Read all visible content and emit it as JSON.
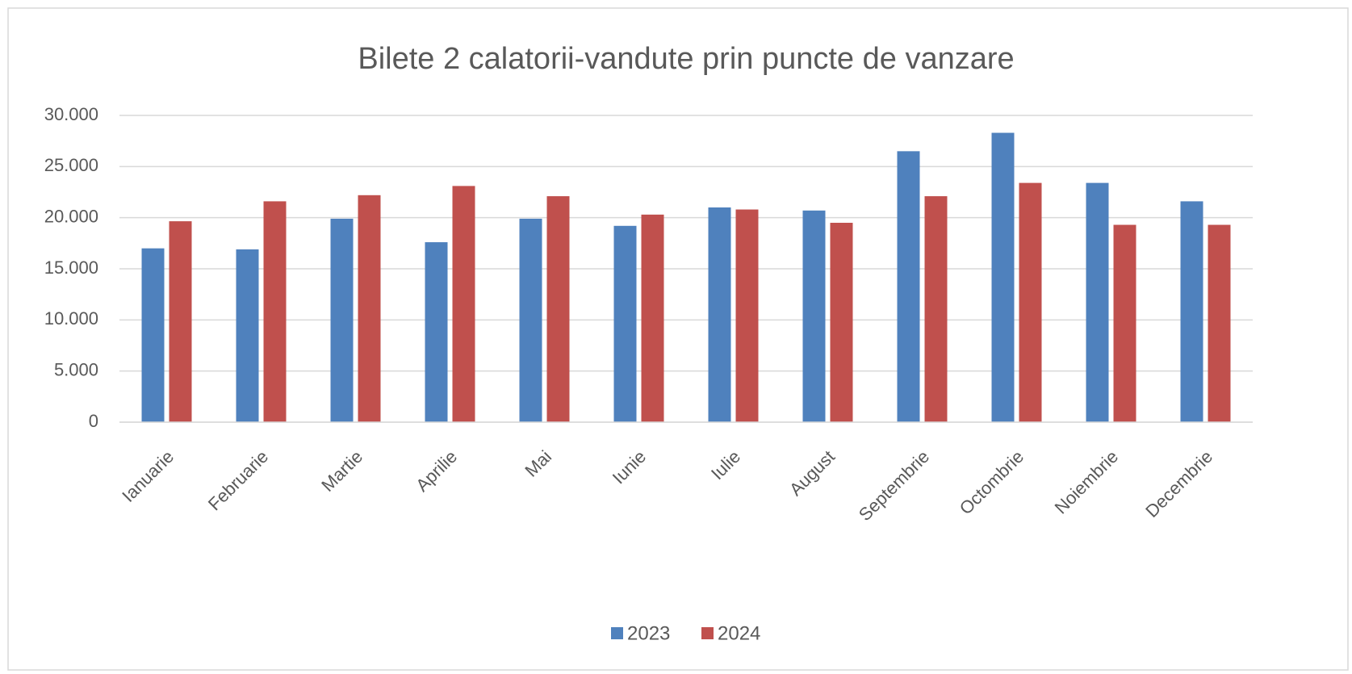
{
  "chart_data": {
    "type": "bar",
    "title": "Bilete 2 calatorii-vandute prin puncte de vanzare",
    "categories": [
      "Ianuarie",
      "Februarie",
      "Martie",
      "Aprilie",
      "Mai",
      "Iunie",
      "Iulie",
      "August",
      "Septembrie",
      "Octombrie",
      "Noiembrie",
      "Decembrie"
    ],
    "series": [
      {
        "name": "2023",
        "color": "#4f81bd",
        "values": [
          17000,
          16900,
          19900,
          17600,
          19900,
          19200,
          21000,
          20700,
          26500,
          28300,
          23400,
          21600
        ]
      },
      {
        "name": "2024",
        "color": "#c0504d",
        "values": [
          19650,
          21600,
          22200,
          23100,
          22100,
          20300,
          20800,
          19500,
          22100,
          23400,
          19300,
          19300
        ]
      }
    ],
    "ylim": [
      0,
      30000
    ],
    "yticks": [
      0,
      {
        "value": 5000,
        "label": "5.000"
      },
      {
        "value": 10000,
        "label": "10.000"
      },
      {
        "value": 15000,
        "label": "15.000"
      },
      {
        "value": 20000,
        "label": "20.000"
      },
      {
        "value": 25000,
        "label": "25.000"
      },
      {
        "value": 30000,
        "label": "30.000"
      }
    ],
    "grid": true,
    "legend": "bottom"
  }
}
